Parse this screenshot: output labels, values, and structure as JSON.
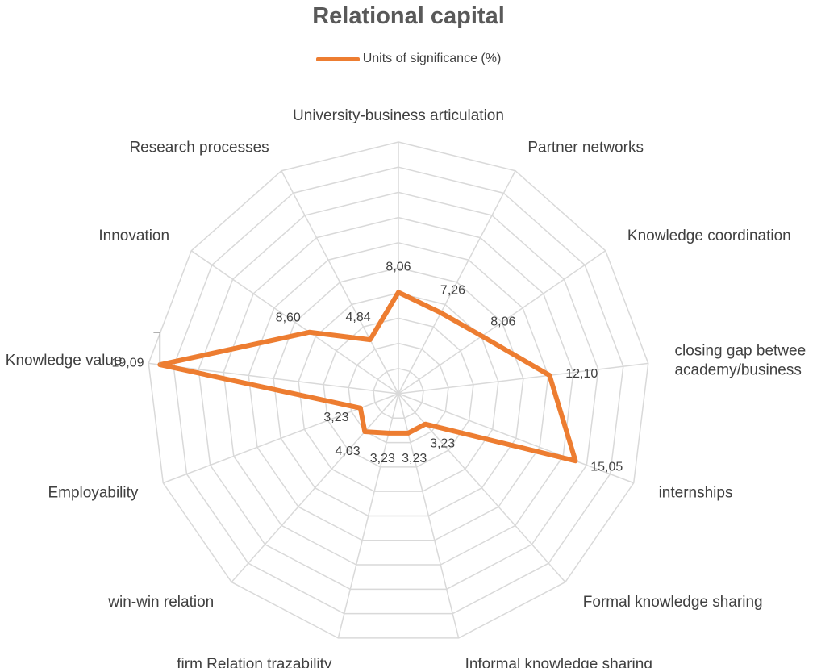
{
  "chart_data": {
    "type": "radar",
    "title": "Relational capital",
    "legend_position": "top",
    "grid": true,
    "rmax": 20,
    "ring_step": 2,
    "categories": [
      "University-business articulation",
      "Partner networks",
      "Knowledge coordination",
      "closing gap betwee academy/business",
      "internships",
      "Formal knowledge sharing",
      "Informal knowledge sharing",
      "firm Relation trazability",
      "win-win relation",
      "Employability",
      "Knowledge value",
      "Innovation",
      "Research processes"
    ],
    "category_label_lines": [
      [
        "University-business articulation"
      ],
      [
        "Partner networks"
      ],
      [
        "Knowledge coordination"
      ],
      [
        "closing gap betwee",
        "academy/business"
      ],
      [
        "internships"
      ],
      [
        "Formal knowledge sharing"
      ],
      [
        "Informal knowledge sharing"
      ],
      [
        "firm Relation trazability"
      ],
      [
        "win-win relation"
      ],
      [
        "Employability"
      ],
      [
        "Knowledge value"
      ],
      [
        "Innovation"
      ],
      [
        "Research processes"
      ]
    ],
    "series": [
      {
        "name": "Units of significance (%)",
        "color": "#ED7D31",
        "values": [
          8.06,
          7.26,
          8.06,
          12.1,
          15.05,
          3.23,
          3.23,
          3.23,
          4.03,
          3.23,
          19.09,
          8.6,
          4.84
        ],
        "value_labels": [
          "8,06",
          "7,26",
          "8,06",
          "12,10",
          "15,05",
          "3,23",
          "3,23",
          "3,23",
          "4,03",
          "3,23",
          "19,09",
          "8,60",
          "4,84"
        ]
      }
    ]
  }
}
